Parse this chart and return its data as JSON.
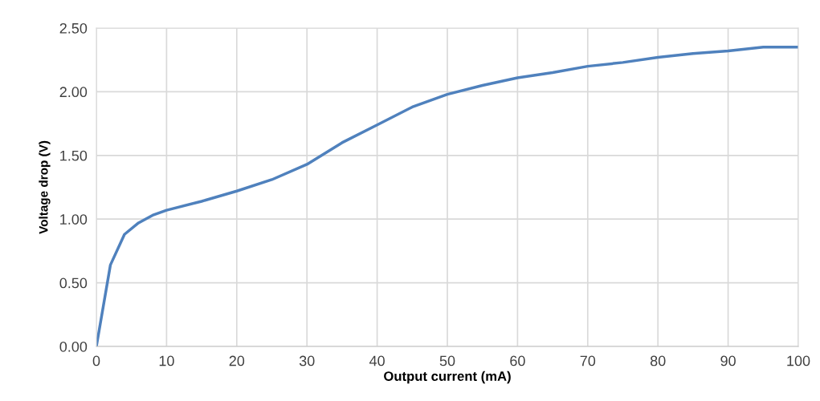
{
  "chart_data": {
    "type": "line",
    "xlabel": "Output current (mA)",
    "ylabel": "Voltage drop (V)",
    "x": [
      0,
      2,
      4,
      6,
      8,
      10,
      15,
      20,
      25,
      30,
      35,
      40,
      45,
      50,
      55,
      60,
      65,
      70,
      75,
      80,
      85,
      90,
      95,
      100
    ],
    "series": [
      {
        "color": "#4f81bd",
        "values": [
          0,
          0.64,
          0.88,
          0.97,
          1.03,
          1.07,
          1.14,
          1.22,
          1.31,
          1.43,
          1.6,
          1.74,
          1.88,
          1.98,
          2.05,
          2.11,
          2.15,
          2.2,
          2.23,
          2.27,
          2.3,
          2.32,
          2.35,
          2.35
        ]
      }
    ],
    "xlim": [
      0,
      100
    ],
    "xticks": [
      0,
      10,
      20,
      30,
      40,
      50,
      60,
      70,
      80,
      90,
      100
    ],
    "ylim": [
      0,
      2.5
    ],
    "yticks": [
      {
        "value": 0,
        "label": "0.00"
      },
      {
        "value": 0.5,
        "label": "0.50"
      },
      {
        "value": 1,
        "label": "1.00"
      },
      {
        "value": 1.5,
        "label": "1.50"
      },
      {
        "value": 2,
        "label": "2.00"
      },
      {
        "value": 2.5,
        "label": "2.50"
      }
    ],
    "grid": true,
    "marker": "none",
    "line_style": "solid"
  }
}
